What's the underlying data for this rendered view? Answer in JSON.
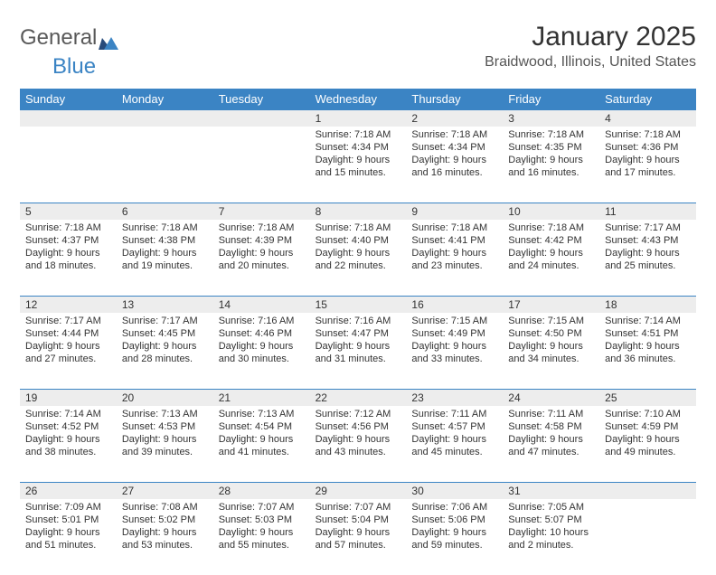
{
  "logo": {
    "part1": "General",
    "part2": "Blue"
  },
  "title": "January 2025",
  "location": "Braidwood, Illinois, United States",
  "colors": {
    "header_bg": "#3b84c4",
    "header_text": "#ffffff",
    "daynum_bg": "#ededed",
    "border": "#3b84c4",
    "body_text": "#333333"
  },
  "day_labels": [
    "Sunday",
    "Monday",
    "Tuesday",
    "Wednesday",
    "Thursday",
    "Friday",
    "Saturday"
  ],
  "weeks": [
    [
      null,
      null,
      null,
      {
        "n": "1",
        "sunrise": "Sunrise: 7:18 AM",
        "sunset": "Sunset: 4:34 PM",
        "d1": "Daylight: 9 hours",
        "d2": "and 15 minutes."
      },
      {
        "n": "2",
        "sunrise": "Sunrise: 7:18 AM",
        "sunset": "Sunset: 4:34 PM",
        "d1": "Daylight: 9 hours",
        "d2": "and 16 minutes."
      },
      {
        "n": "3",
        "sunrise": "Sunrise: 7:18 AM",
        "sunset": "Sunset: 4:35 PM",
        "d1": "Daylight: 9 hours",
        "d2": "and 16 minutes."
      },
      {
        "n": "4",
        "sunrise": "Sunrise: 7:18 AM",
        "sunset": "Sunset: 4:36 PM",
        "d1": "Daylight: 9 hours",
        "d2": "and 17 minutes."
      }
    ],
    [
      {
        "n": "5",
        "sunrise": "Sunrise: 7:18 AM",
        "sunset": "Sunset: 4:37 PM",
        "d1": "Daylight: 9 hours",
        "d2": "and 18 minutes."
      },
      {
        "n": "6",
        "sunrise": "Sunrise: 7:18 AM",
        "sunset": "Sunset: 4:38 PM",
        "d1": "Daylight: 9 hours",
        "d2": "and 19 minutes."
      },
      {
        "n": "7",
        "sunrise": "Sunrise: 7:18 AM",
        "sunset": "Sunset: 4:39 PM",
        "d1": "Daylight: 9 hours",
        "d2": "and 20 minutes."
      },
      {
        "n": "8",
        "sunrise": "Sunrise: 7:18 AM",
        "sunset": "Sunset: 4:40 PM",
        "d1": "Daylight: 9 hours",
        "d2": "and 22 minutes."
      },
      {
        "n": "9",
        "sunrise": "Sunrise: 7:18 AM",
        "sunset": "Sunset: 4:41 PM",
        "d1": "Daylight: 9 hours",
        "d2": "and 23 minutes."
      },
      {
        "n": "10",
        "sunrise": "Sunrise: 7:18 AM",
        "sunset": "Sunset: 4:42 PM",
        "d1": "Daylight: 9 hours",
        "d2": "and 24 minutes."
      },
      {
        "n": "11",
        "sunrise": "Sunrise: 7:17 AM",
        "sunset": "Sunset: 4:43 PM",
        "d1": "Daylight: 9 hours",
        "d2": "and 25 minutes."
      }
    ],
    [
      {
        "n": "12",
        "sunrise": "Sunrise: 7:17 AM",
        "sunset": "Sunset: 4:44 PM",
        "d1": "Daylight: 9 hours",
        "d2": "and 27 minutes."
      },
      {
        "n": "13",
        "sunrise": "Sunrise: 7:17 AM",
        "sunset": "Sunset: 4:45 PM",
        "d1": "Daylight: 9 hours",
        "d2": "and 28 minutes."
      },
      {
        "n": "14",
        "sunrise": "Sunrise: 7:16 AM",
        "sunset": "Sunset: 4:46 PM",
        "d1": "Daylight: 9 hours",
        "d2": "and 30 minutes."
      },
      {
        "n": "15",
        "sunrise": "Sunrise: 7:16 AM",
        "sunset": "Sunset: 4:47 PM",
        "d1": "Daylight: 9 hours",
        "d2": "and 31 minutes."
      },
      {
        "n": "16",
        "sunrise": "Sunrise: 7:15 AM",
        "sunset": "Sunset: 4:49 PM",
        "d1": "Daylight: 9 hours",
        "d2": "and 33 minutes."
      },
      {
        "n": "17",
        "sunrise": "Sunrise: 7:15 AM",
        "sunset": "Sunset: 4:50 PM",
        "d1": "Daylight: 9 hours",
        "d2": "and 34 minutes."
      },
      {
        "n": "18",
        "sunrise": "Sunrise: 7:14 AM",
        "sunset": "Sunset: 4:51 PM",
        "d1": "Daylight: 9 hours",
        "d2": "and 36 minutes."
      }
    ],
    [
      {
        "n": "19",
        "sunrise": "Sunrise: 7:14 AM",
        "sunset": "Sunset: 4:52 PM",
        "d1": "Daylight: 9 hours",
        "d2": "and 38 minutes."
      },
      {
        "n": "20",
        "sunrise": "Sunrise: 7:13 AM",
        "sunset": "Sunset: 4:53 PM",
        "d1": "Daylight: 9 hours",
        "d2": "and 39 minutes."
      },
      {
        "n": "21",
        "sunrise": "Sunrise: 7:13 AM",
        "sunset": "Sunset: 4:54 PM",
        "d1": "Daylight: 9 hours",
        "d2": "and 41 minutes."
      },
      {
        "n": "22",
        "sunrise": "Sunrise: 7:12 AM",
        "sunset": "Sunset: 4:56 PM",
        "d1": "Daylight: 9 hours",
        "d2": "and 43 minutes."
      },
      {
        "n": "23",
        "sunrise": "Sunrise: 7:11 AM",
        "sunset": "Sunset: 4:57 PM",
        "d1": "Daylight: 9 hours",
        "d2": "and 45 minutes."
      },
      {
        "n": "24",
        "sunrise": "Sunrise: 7:11 AM",
        "sunset": "Sunset: 4:58 PM",
        "d1": "Daylight: 9 hours",
        "d2": "and 47 minutes."
      },
      {
        "n": "25",
        "sunrise": "Sunrise: 7:10 AM",
        "sunset": "Sunset: 4:59 PM",
        "d1": "Daylight: 9 hours",
        "d2": "and 49 minutes."
      }
    ],
    [
      {
        "n": "26",
        "sunrise": "Sunrise: 7:09 AM",
        "sunset": "Sunset: 5:01 PM",
        "d1": "Daylight: 9 hours",
        "d2": "and 51 minutes."
      },
      {
        "n": "27",
        "sunrise": "Sunrise: 7:08 AM",
        "sunset": "Sunset: 5:02 PM",
        "d1": "Daylight: 9 hours",
        "d2": "and 53 minutes."
      },
      {
        "n": "28",
        "sunrise": "Sunrise: 7:07 AM",
        "sunset": "Sunset: 5:03 PM",
        "d1": "Daylight: 9 hours",
        "d2": "and 55 minutes."
      },
      {
        "n": "29",
        "sunrise": "Sunrise: 7:07 AM",
        "sunset": "Sunset: 5:04 PM",
        "d1": "Daylight: 9 hours",
        "d2": "and 57 minutes."
      },
      {
        "n": "30",
        "sunrise": "Sunrise: 7:06 AM",
        "sunset": "Sunset: 5:06 PM",
        "d1": "Daylight: 9 hours",
        "d2": "and 59 minutes."
      },
      {
        "n": "31",
        "sunrise": "Sunrise: 7:05 AM",
        "sunset": "Sunset: 5:07 PM",
        "d1": "Daylight: 10 hours",
        "d2": "and 2 minutes."
      },
      null
    ]
  ]
}
